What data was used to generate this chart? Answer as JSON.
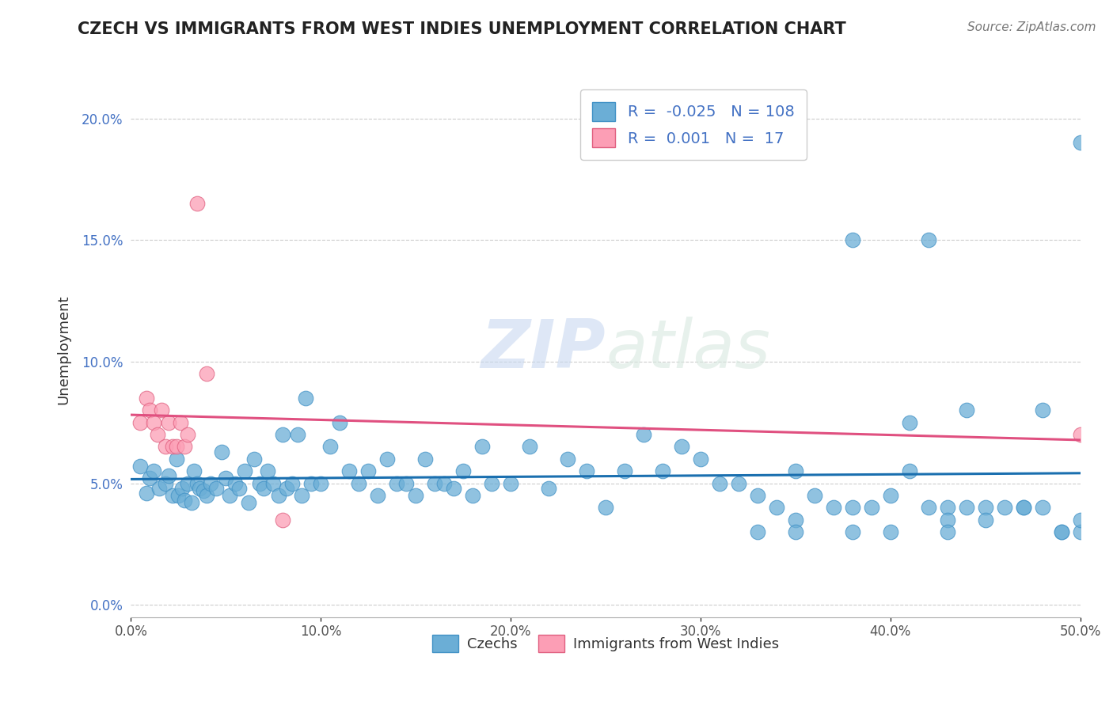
{
  "title": "CZECH VS IMMIGRANTS FROM WEST INDIES UNEMPLOYMENT CORRELATION CHART",
  "source_text": "Source: ZipAtlas.com",
  "xlabel": "",
  "ylabel": "Unemployment",
  "xlim": [
    0,
    0.5
  ],
  "ylim": [
    -0.005,
    0.215
  ],
  "yticks": [
    0.0,
    0.05,
    0.1,
    0.15,
    0.2
  ],
  "ytick_labels": [
    "0.0%",
    "5.0%",
    "10.0%",
    "15.0%",
    "20.0%"
  ],
  "xticks": [
    0.0,
    0.1,
    0.2,
    0.3,
    0.4,
    0.5
  ],
  "xtick_labels": [
    "0.0%",
    "10.0%",
    "20.0%",
    "30.0%",
    "40.0%",
    "50.0%"
  ],
  "blue_color": "#6baed6",
  "pink_color": "#fc9eb5",
  "blue_edge": "#4292c6",
  "pink_edge": "#e06080",
  "trend_blue": "#1a6faf",
  "trend_pink": "#e05080",
  "background_color": "#ffffff",
  "grid_color": "#cccccc",
  "legend_R1": "-0.025",
  "legend_N1": "108",
  "legend_R2": "0.001",
  "legend_N2": "17",
  "legend_label1": "Czechs",
  "legend_label2": "Immigrants from West Indies",
  "watermark_zip": "ZIP",
  "watermark_atlas": "atlas",
  "blue_scatter_x": [
    0.005,
    0.008,
    0.01,
    0.012,
    0.015,
    0.018,
    0.02,
    0.022,
    0.024,
    0.025,
    0.027,
    0.028,
    0.03,
    0.032,
    0.033,
    0.035,
    0.036,
    0.038,
    0.04,
    0.042,
    0.045,
    0.048,
    0.05,
    0.052,
    0.055,
    0.057,
    0.06,
    0.062,
    0.065,
    0.068,
    0.07,
    0.072,
    0.075,
    0.078,
    0.08,
    0.082,
    0.085,
    0.088,
    0.09,
    0.092,
    0.095,
    0.1,
    0.105,
    0.11,
    0.115,
    0.12,
    0.125,
    0.13,
    0.135,
    0.14,
    0.145,
    0.15,
    0.155,
    0.16,
    0.165,
    0.17,
    0.175,
    0.18,
    0.185,
    0.19,
    0.2,
    0.21,
    0.22,
    0.23,
    0.24,
    0.25,
    0.26,
    0.27,
    0.28,
    0.29,
    0.3,
    0.31,
    0.32,
    0.33,
    0.34,
    0.35,
    0.36,
    0.37,
    0.38,
    0.39,
    0.4,
    0.41,
    0.42,
    0.43,
    0.44,
    0.45,
    0.46,
    0.47,
    0.48,
    0.49,
    0.5,
    0.41,
    0.43,
    0.45,
    0.47,
    0.49,
    0.5,
    0.33,
    0.35,
    0.38,
    0.42,
    0.44,
    0.48,
    0.5,
    0.35,
    0.38,
    0.4,
    0.43
  ],
  "blue_scatter_y": [
    0.057,
    0.046,
    0.052,
    0.055,
    0.048,
    0.05,
    0.053,
    0.045,
    0.06,
    0.045,
    0.048,
    0.043,
    0.05,
    0.042,
    0.055,
    0.05,
    0.048,
    0.047,
    0.045,
    0.05,
    0.048,
    0.063,
    0.052,
    0.045,
    0.05,
    0.048,
    0.055,
    0.042,
    0.06,
    0.05,
    0.048,
    0.055,
    0.05,
    0.045,
    0.07,
    0.048,
    0.05,
    0.07,
    0.045,
    0.085,
    0.05,
    0.05,
    0.065,
    0.075,
    0.055,
    0.05,
    0.055,
    0.045,
    0.06,
    0.05,
    0.05,
    0.045,
    0.06,
    0.05,
    0.05,
    0.048,
    0.055,
    0.045,
    0.065,
    0.05,
    0.05,
    0.065,
    0.048,
    0.06,
    0.055,
    0.04,
    0.055,
    0.07,
    0.055,
    0.065,
    0.06,
    0.05,
    0.05,
    0.045,
    0.04,
    0.055,
    0.045,
    0.04,
    0.04,
    0.04,
    0.045,
    0.055,
    0.04,
    0.04,
    0.04,
    0.04,
    0.04,
    0.04,
    0.04,
    0.03,
    0.19,
    0.075,
    0.035,
    0.035,
    0.04,
    0.03,
    0.03,
    0.03,
    0.035,
    0.15,
    0.15,
    0.08,
    0.08,
    0.035,
    0.03,
    0.03,
    0.03,
    0.03
  ],
  "pink_scatter_x": [
    0.005,
    0.008,
    0.01,
    0.012,
    0.014,
    0.016,
    0.018,
    0.02,
    0.022,
    0.024,
    0.026,
    0.028,
    0.03,
    0.035,
    0.04,
    0.08,
    0.5
  ],
  "pink_scatter_y": [
    0.075,
    0.085,
    0.08,
    0.075,
    0.07,
    0.08,
    0.065,
    0.075,
    0.065,
    0.065,
    0.075,
    0.065,
    0.07,
    0.165,
    0.095,
    0.035,
    0.07
  ]
}
